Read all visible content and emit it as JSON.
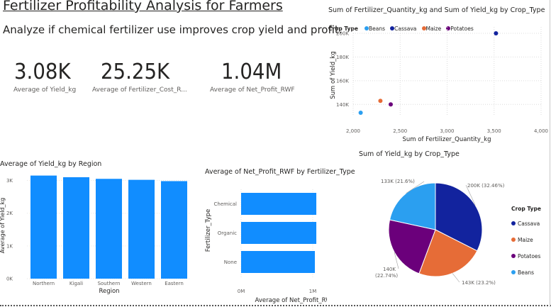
{
  "header": {
    "title": "Fertilizer Profitability Analysis for Farmers",
    "subtitle": "Analyze if chemical fertilizer use improves crop yield and profit."
  },
  "cards": [
    {
      "value": "3.08K",
      "label": "Average of Yield_kg"
    },
    {
      "value": "25.25K",
      "label": "Average of Fertilizer_Cost_R..."
    },
    {
      "value": "1.04M",
      "label": "Average of Net_Profit_RWF"
    }
  ],
  "colors": {
    "Beans": "#2b9ff0",
    "Cassava": "#12239e",
    "Maize": "#e66c37",
    "Potatoes": "#6b007b",
    "bar": "#118dff"
  },
  "scatter": {
    "title": "Sum of Fertilizer_Quantity_kg and Sum of Yield_kg by Crop_Type",
    "legend_title": "Crop Type",
    "legend": [
      "Beans",
      "Cassava",
      "Maize",
      "Potatoes"
    ],
    "xlabel": "Sum of Fertilizer_Quantity_kg",
    "ylabel": "Sum of Yield_kg",
    "xticks": [
      "2,000",
      "2,500",
      "3,000",
      "3,500",
      "4,000"
    ],
    "yticks": [
      "140K",
      "160K",
      "180K",
      "200K"
    ]
  },
  "region_bar": {
    "title": "Average of Yield_kg by Region",
    "xlabel": "Region",
    "ylabel": "Average of Yield_kg",
    "yticks": [
      "0K",
      "1K",
      "2K",
      "3K"
    ]
  },
  "fert_bar": {
    "title": "Average of Net_Profit_RWF by Fertilizer_Type",
    "xlabel": "Average of Net_Profit_RWF",
    "ylabel": "Fertilizer_Type",
    "xticks": [
      "0M",
      "1M"
    ]
  },
  "pie": {
    "title": "Sum of Yield_kg by Crop_Type",
    "legend_title": "Crop Type",
    "legend": [
      "Cassava",
      "Maize",
      "Potatoes",
      "Beans"
    ],
    "labels": {
      "Cassava": "200K (32.46%)",
      "Maize": "143K (23.2%)",
      "Potatoes_line1": "140K",
      "Potatoes_line2": "(22.74%)",
      "Beans": "133K (21.6%)"
    }
  },
  "chart_data": [
    {
      "type": "scatter",
      "title": "Sum of Fertilizer_Quantity_kg and Sum of Yield_kg by Crop_Type",
      "xlabel": "Sum of Fertilizer_Quantity_kg",
      "ylabel": "Sum of Yield_kg",
      "xlim": [
        2000,
        4000
      ],
      "ylim": [
        133000,
        200000
      ],
      "series": [
        {
          "name": "Beans",
          "x": [
            2080
          ],
          "y": [
            133000
          ]
        },
        {
          "name": "Cassava",
          "x": [
            3520
          ],
          "y": [
            200000
          ]
        },
        {
          "name": "Maize",
          "x": [
            2290
          ],
          "y": [
            143000
          ]
        },
        {
          "name": "Potatoes",
          "x": [
            2400
          ],
          "y": [
            140000
          ]
        }
      ],
      "grid": true,
      "legend": "top-left"
    },
    {
      "type": "bar",
      "title": "Average of Yield_kg by Region",
      "categories": [
        "Northern",
        "Kigali",
        "Southern",
        "Western",
        "Eastern"
      ],
      "values": [
        3150,
        3100,
        3050,
        3020,
        2980
      ],
      "xlabel": "Region",
      "ylabel": "Average of Yield_kg",
      "ylim": [
        0,
        3250
      ]
    },
    {
      "type": "bar",
      "orientation": "horizontal",
      "title": "Average of Net_Profit_RWF by Fertilizer_Type",
      "categories": [
        "Chemical",
        "Organic",
        "None"
      ],
      "values": [
        1050000,
        1050000,
        1030000
      ],
      "xlabel": "Average of Net_Profit_RWF",
      "ylabel": "Fertilizer_Type",
      "xlim": [
        0,
        1000000
      ]
    },
    {
      "type": "pie",
      "title": "Sum of Yield_kg by Crop_Type",
      "categories": [
        "Cassava",
        "Maize",
        "Potatoes",
        "Beans"
      ],
      "values": [
        200000,
        143000,
        140000,
        133000
      ],
      "percent": [
        32.46,
        23.2,
        22.74,
        21.6
      ],
      "legend": "right"
    }
  ]
}
